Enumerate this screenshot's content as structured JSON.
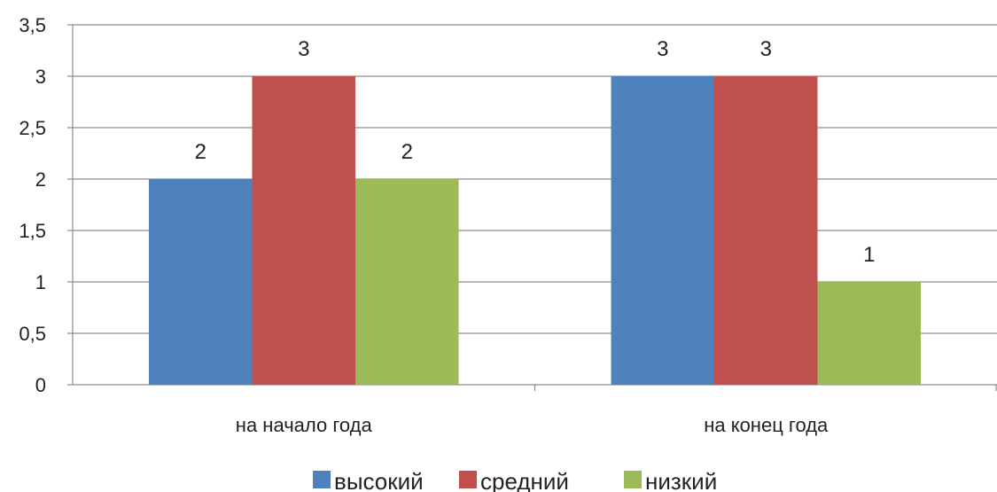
{
  "chart_data": {
    "type": "bar",
    "title": "",
    "xlabel": "",
    "ylabel": "",
    "categories": [
      "на начало года",
      "на конец года"
    ],
    "series": [
      {
        "name": "высокий",
        "values": [
          2,
          3
        ],
        "color": "#4F81BD"
      },
      {
        "name": "средний",
        "values": [
          3,
          3
        ],
        "color": "#C0504D"
      },
      {
        "name": "низкий",
        "values": [
          2,
          1
        ],
        "color": "#9BBB59"
      }
    ],
    "ylim": [
      0,
      3.5
    ],
    "yticks": [
      0,
      0.5,
      1,
      1.5,
      2,
      2.5,
      3,
      3.5
    ],
    "ytick_labels": [
      "0",
      "0,5",
      "1",
      "1,5",
      "2",
      "2,5",
      "3",
      "3,5"
    ],
    "data_labels": true,
    "grid": true,
    "legend_position": "bottom"
  }
}
